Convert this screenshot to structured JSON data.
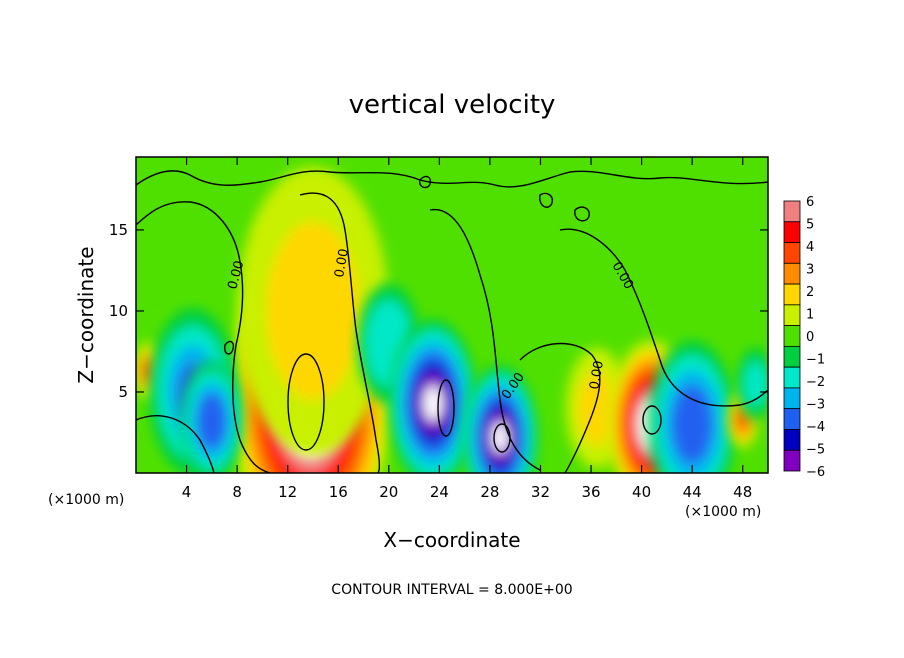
{
  "chart_data": {
    "type": "heatmap",
    "title": "vertical velocity",
    "xlabel": "X−coordinate",
    "ylabel": "Z−coordinate",
    "x_unit_left": "(×1000 m)",
    "x_unit_right": "(×1000 m)",
    "xlim": [
      0,
      50
    ],
    "ylim": [
      0,
      19.5
    ],
    "xticks": [
      "4",
      "8",
      "12",
      "16",
      "20",
      "24",
      "28",
      "32",
      "36",
      "40",
      "44",
      "48"
    ],
    "xtick_values": [
      4,
      8,
      12,
      16,
      20,
      24,
      28,
      32,
      36,
      40,
      44,
      48
    ],
    "yticks": [
      "5",
      "10",
      "15"
    ],
    "ytick_values": [
      5,
      10,
      15
    ],
    "colorbar": {
      "labels": [
        "6",
        "5",
        "4",
        "3",
        "2",
        "1",
        "0",
        "−1",
        "−2",
        "−3",
        "−4",
        "−5",
        "−6"
      ],
      "values": [
        6,
        5,
        4,
        3,
        2,
        1,
        0,
        -1,
        -2,
        -3,
        -4,
        -5,
        -6
      ],
      "colors": [
        "#f08080",
        "#ff0000",
        "#ff4500",
        "#ff8c00",
        "#ffd700",
        "#c8f000",
        "#50e000",
        "#00d040",
        "#00e8c8",
        "#00b4f0",
        "#2060f0",
        "#0000c0",
        "#8000c0"
      ]
    },
    "contour_label": "0.00",
    "contour_interval_text": "CONTOUR INTERVAL = 8.000E+00",
    "features": [
      {
        "x": 13.8,
        "z": 4.5,
        "w": 6.4,
        "peak": 9.0
      },
      {
        "x": 14.0,
        "z": 10.0,
        "w": 6.0,
        "peak": 2.0
      },
      {
        "x": 1.0,
        "z": 6.3,
        "w": 1.2,
        "peak": 4.0
      },
      {
        "x": 4.5,
        "z": 5.0,
        "w": 3.5,
        "peak": -4.0
      },
      {
        "x": 6.0,
        "z": 3.2,
        "w": 2.5,
        "peak": -4.5
      },
      {
        "x": 20.0,
        "z": 8.0,
        "w": 2.5,
        "peak": -2.5
      },
      {
        "x": 23.5,
        "z": 4.3,
        "w": 3.5,
        "peak": -6.5
      },
      {
        "x": 28.8,
        "z": 2.2,
        "w": 3.0,
        "peak": -6.5
      },
      {
        "x": 36.5,
        "z": 4.0,
        "w": 2.5,
        "peak": 1.5
      },
      {
        "x": 40.8,
        "z": 3.0,
        "w": 3.5,
        "peak": 8.0
      },
      {
        "x": 44.0,
        "z": 3.0,
        "w": 3.5,
        "peak": -4.5
      },
      {
        "x": 48.0,
        "z": 3.3,
        "w": 1.2,
        "peak": 4.0
      },
      {
        "x": 49.0,
        "z": 5.5,
        "w": 1.5,
        "peak": -2.0
      }
    ]
  }
}
